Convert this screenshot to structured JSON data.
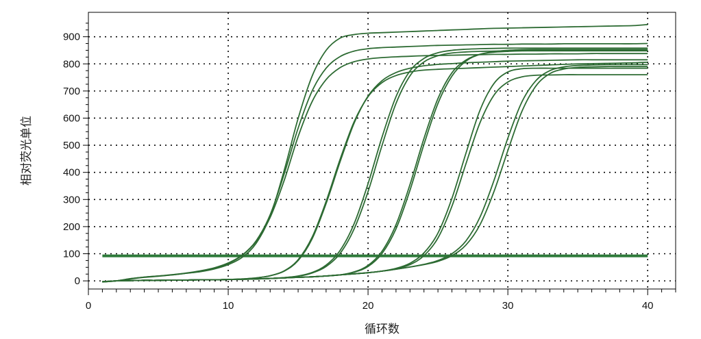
{
  "chart_data": {
    "type": "line",
    "title": "",
    "xlabel": "循环数",
    "ylabel": "相对荧光单位",
    "xlim": [
      0,
      42
    ],
    "ylim": [
      -30,
      990
    ],
    "x_ticks": [
      0,
      10,
      20,
      30,
      40
    ],
    "y_ticks": [
      0,
      100,
      200,
      300,
      400,
      500,
      600,
      700,
      800,
      900
    ],
    "grid": true,
    "grid_style": "dotted",
    "legend": "none",
    "line_color": "#2d6b33",
    "threshold": {
      "y": 92,
      "x_start": 1,
      "x_end": 40,
      "color": "#2d7a3a"
    },
    "series": [
      {
        "x": [
          1,
          2,
          3,
          4,
          5,
          6,
          7,
          8,
          9,
          10,
          11,
          12,
          13,
          14,
          15,
          16,
          17,
          18,
          19,
          20,
          21,
          22,
          23,
          24,
          25,
          26,
          27,
          28,
          29,
          30,
          31,
          32,
          33,
          34,
          35,
          36,
          37,
          38,
          39,
          40
        ],
        "y": [
          -4,
          0,
          8,
          14,
          18,
          22,
          28,
          34,
          44,
          60,
          87,
          139,
          239,
          407,
          599,
          755,
          850,
          895,
          908,
          913,
          915,
          917,
          919,
          921,
          923,
          925,
          927,
          929,
          931,
          932,
          933,
          934,
          935,
          936,
          937,
          938,
          939,
          940,
          941,
          945
        ]
      },
      {
        "x": [
          1,
          2,
          3,
          4,
          5,
          6,
          7,
          8,
          9,
          10,
          11,
          12,
          13,
          14,
          15,
          16,
          17,
          18,
          19,
          20,
          21,
          22,
          23,
          24,
          25,
          26,
          27,
          28,
          29,
          30,
          31,
          32,
          33,
          34,
          35,
          36,
          37,
          38,
          39,
          40
        ],
        "y": [
          -4,
          0,
          8,
          14,
          18,
          23,
          29,
          37,
          48,
          66,
          95,
          148,
          244,
          394,
          563,
          700,
          784,
          827,
          847,
          856,
          860,
          862,
          864,
          866,
          868,
          869,
          870,
          871,
          872,
          872,
          873,
          873,
          873,
          874,
          874,
          874,
          874,
          874,
          874,
          875
        ]
      },
      {
        "x": [
          1,
          2,
          3,
          4,
          5,
          6,
          7,
          8,
          9,
          10,
          11,
          12,
          13,
          14,
          15,
          16,
          17,
          18,
          19,
          20,
          21,
          22,
          23,
          24,
          25,
          26,
          27,
          28,
          29,
          30,
          31,
          32,
          33,
          34,
          35,
          36,
          37,
          38,
          39,
          40
        ],
        "y": [
          -4,
          0,
          7,
          13,
          17,
          22,
          28,
          35,
          46,
          64,
          94,
          146,
          234,
          370,
          532,
          661,
          742,
          786,
          808,
          818,
          823,
          826,
          828,
          830,
          831,
          832,
          833,
          834,
          835,
          835,
          836,
          836,
          837,
          837,
          837,
          838,
          838,
          838,
          838,
          838
        ]
      },
      {
        "x": [
          1,
          2,
          3,
          4,
          5,
          6,
          7,
          8,
          9,
          10,
          11,
          12,
          13,
          14,
          15,
          16,
          17,
          18,
          19,
          20,
          21,
          22,
          23,
          24,
          25,
          26,
          27,
          28,
          29,
          30,
          31,
          32,
          33,
          34,
          35,
          36,
          37,
          38,
          39,
          40
        ],
        "y": [
          -3,
          0,
          1,
          2,
          2,
          3,
          3,
          4,
          4,
          5,
          7,
          11,
          19,
          37,
          78,
          161,
          293,
          448,
          586,
          679,
          731,
          757,
          770,
          777,
          780,
          782,
          784,
          786,
          788,
          790,
          792,
          794,
          796,
          798,
          800,
          801,
          802,
          803,
          804,
          806
        ]
      },
      {
        "x": [
          1,
          2,
          3,
          4,
          5,
          6,
          7,
          8,
          9,
          10,
          11,
          12,
          13,
          14,
          15,
          16,
          17,
          18,
          19,
          20,
          21,
          22,
          23,
          24,
          25,
          26,
          27,
          28,
          29,
          30,
          31,
          32,
          33,
          34,
          35,
          36,
          37,
          38,
          39,
          40
        ],
        "y": [
          -3,
          0,
          1,
          2,
          2,
          3,
          3,
          4,
          4,
          5,
          7,
          11,
          19,
          36,
          75,
          155,
          285,
          439,
          581,
          681,
          738,
          768,
          784,
          793,
          798,
          801,
          804,
          806,
          808,
          810,
          811,
          812,
          813,
          814,
          815,
          815,
          815,
          815,
          815,
          815
        ]
      },
      {
        "x": [
          1,
          2,
          3,
          4,
          5,
          6,
          7,
          8,
          9,
          10,
          11,
          12,
          13,
          14,
          15,
          16,
          17,
          18,
          19,
          20,
          21,
          22,
          23,
          24,
          25,
          26,
          27,
          28,
          29,
          30,
          31,
          32,
          33,
          34,
          35,
          36,
          37,
          38,
          39,
          40
        ],
        "y": [
          -3,
          0,
          1,
          2,
          2,
          3,
          3,
          4,
          4,
          5,
          6,
          7,
          9,
          12,
          18,
          31,
          58,
          112,
          210,
          358,
          530,
          679,
          774,
          820,
          841,
          850,
          854,
          856,
          857,
          858,
          858,
          858,
          858,
          858,
          858,
          858,
          858,
          858,
          858,
          858
        ]
      },
      {
        "x": [
          1,
          2,
          3,
          4,
          5,
          6,
          7,
          8,
          9,
          10,
          11,
          12,
          13,
          14,
          15,
          16,
          17,
          18,
          19,
          20,
          21,
          22,
          23,
          24,
          25,
          26,
          27,
          28,
          29,
          30,
          31,
          32,
          33,
          34,
          35,
          36,
          37,
          38,
          39,
          40
        ],
        "y": [
          -3,
          0,
          1,
          2,
          2,
          3,
          3,
          4,
          4,
          5,
          6,
          7,
          9,
          12,
          17,
          29,
          53,
          101,
          191,
          329,
          499,
          654,
          756,
          807,
          830,
          840,
          844,
          846,
          847,
          848,
          848,
          848,
          848,
          848,
          848,
          848,
          848,
          848,
          848,
          848
        ]
      },
      {
        "x": [
          1,
          2,
          3,
          4,
          5,
          6,
          7,
          8,
          9,
          10,
          11,
          12,
          13,
          14,
          15,
          16,
          17,
          18,
          19,
          20,
          21,
          22,
          23,
          24,
          25,
          26,
          27,
          28,
          29,
          30,
          31,
          32,
          33,
          34,
          35,
          36,
          37,
          38,
          39,
          40
        ],
        "y": [
          -3,
          0,
          1,
          2,
          2,
          3,
          3,
          4,
          4,
          5,
          6,
          7,
          9,
          11,
          13,
          15,
          18,
          22,
          33,
          57,
          109,
          207,
          355,
          525,
          672,
          767,
          814,
          835,
          843,
          846,
          848,
          849,
          849,
          849,
          849,
          849,
          849,
          849,
          849,
          850
        ]
      },
      {
        "x": [
          1,
          2,
          3,
          4,
          5,
          6,
          7,
          8,
          9,
          10,
          11,
          12,
          13,
          14,
          15,
          16,
          17,
          18,
          19,
          20,
          21,
          22,
          23,
          24,
          25,
          26,
          27,
          28,
          29,
          30,
          31,
          32,
          33,
          34,
          35,
          36,
          37,
          38,
          39,
          40
        ],
        "y": [
          -3,
          0,
          1,
          2,
          2,
          3,
          3,
          4,
          4,
          5,
          6,
          7,
          9,
          11,
          13,
          15,
          18,
          22,
          32,
          53,
          101,
          192,
          334,
          503,
          654,
          755,
          810,
          835,
          845,
          850,
          852,
          853,
          853,
          853,
          853,
          853,
          853,
          853,
          853,
          853
        ]
      },
      {
        "x": [
          1,
          2,
          3,
          4,
          5,
          6,
          7,
          8,
          9,
          10,
          11,
          12,
          13,
          14,
          15,
          16,
          17,
          18,
          19,
          20,
          21,
          22,
          23,
          24,
          25,
          26,
          27,
          28,
          29,
          30,
          31,
          32,
          33,
          34,
          35,
          36,
          37,
          38,
          39,
          40
        ],
        "y": [
          -3,
          0,
          1,
          2,
          2,
          3,
          3,
          4,
          4,
          5,
          6,
          7,
          9,
          11,
          13,
          15,
          18,
          22,
          26,
          30,
          36,
          46,
          65,
          103,
          176,
          304,
          470,
          628,
          727,
          770,
          782,
          784,
          784,
          784,
          784,
          784,
          784,
          784,
          784,
          784
        ]
      },
      {
        "x": [
          1,
          2,
          3,
          4,
          5,
          6,
          7,
          8,
          9,
          10,
          11,
          12,
          13,
          14,
          15,
          16,
          17,
          18,
          19,
          20,
          21,
          22,
          23,
          24,
          25,
          26,
          27,
          28,
          29,
          30,
          31,
          32,
          33,
          34,
          35,
          36,
          37,
          38,
          39,
          40
        ],
        "y": [
          -3,
          0,
          1,
          2,
          2,
          3,
          3,
          4,
          4,
          5,
          6,
          7,
          9,
          11,
          13,
          15,
          18,
          22,
          26,
          30,
          36,
          45,
          60,
          93,
          158,
          275,
          431,
          582,
          684,
          733,
          752,
          758,
          759,
          760,
          760,
          760,
          760,
          760,
          760,
          760
        ]
      },
      {
        "x": [
          1,
          2,
          3,
          4,
          5,
          6,
          7,
          8,
          9,
          10,
          11,
          12,
          13,
          14,
          15,
          16,
          17,
          18,
          19,
          20,
          21,
          22,
          23,
          24,
          25,
          26,
          27,
          28,
          29,
          30,
          31,
          32,
          33,
          34,
          35,
          36,
          37,
          38,
          39,
          40
        ],
        "y": [
          -3,
          0,
          1,
          2,
          2,
          3,
          3,
          4,
          4,
          5,
          6,
          7,
          9,
          11,
          13,
          15,
          18,
          22,
          26,
          30,
          36,
          43,
          51,
          61,
          75,
          100,
          147,
          234,
          369,
          526,
          659,
          738,
          775,
          789,
          794,
          796,
          797,
          797,
          797,
          797
        ]
      },
      {
        "x": [
          1,
          2,
          3,
          4,
          5,
          6,
          7,
          8,
          9,
          10,
          11,
          12,
          13,
          14,
          15,
          16,
          17,
          18,
          19,
          20,
          21,
          22,
          23,
          24,
          25,
          26,
          27,
          28,
          29,
          30,
          31,
          32,
          33,
          34,
          35,
          36,
          37,
          38,
          39,
          40
        ],
        "y": [
          -3,
          0,
          1,
          2,
          2,
          3,
          3,
          4,
          4,
          5,
          6,
          7,
          9,
          11,
          13,
          15,
          18,
          22,
          26,
          30,
          36,
          43,
          51,
          60,
          72,
          93,
          132,
          206,
          328,
          480,
          624,
          718,
          764,
          781,
          787,
          789,
          790,
          790,
          790,
          790
        ]
      }
    ]
  }
}
